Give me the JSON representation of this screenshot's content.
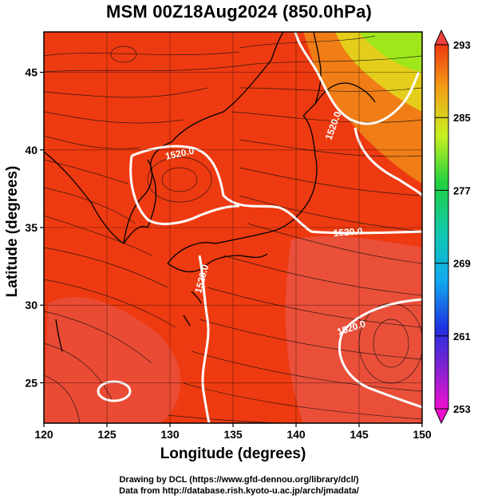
{
  "title": "MSM 00Z18Aug2024 (850.0hPa)",
  "x_axis": {
    "label": "Longitude (degrees)",
    "range": [
      120,
      150
    ],
    "ticks": [
      "120",
      "125",
      "130",
      "135",
      "140",
      "145",
      "150"
    ]
  },
  "y_axis": {
    "label": "Latitude  (degrees)",
    "range": [
      22.4,
      47.6
    ],
    "ticks": [
      "25",
      "30",
      "35",
      "40",
      "45"
    ]
  },
  "colorbar": {
    "range": [
      253,
      293
    ],
    "ticks": [
      "293",
      "285",
      "277",
      "269",
      "261",
      "253"
    ]
  },
  "contours": {
    "field": "geopotential height",
    "labels": [
      "1520.0",
      "1520.0",
      "1520.0",
      "1520.0",
      "1520.0"
    ],
    "color": "#ffffff"
  },
  "colors": {
    "warm_field": "#ee3a10",
    "warm_patch": "#e85a52",
    "cool_corner": "#9fe61a",
    "coast": "#000000",
    "stream": "#111111"
  },
  "credits": {
    "line1": "Drawing by DCL (https://www.gfd-dennou.org/library/dcl/)",
    "line2": "Data from http://database.rish.kyoto-u.ac.jp/arch/jmadata/"
  }
}
